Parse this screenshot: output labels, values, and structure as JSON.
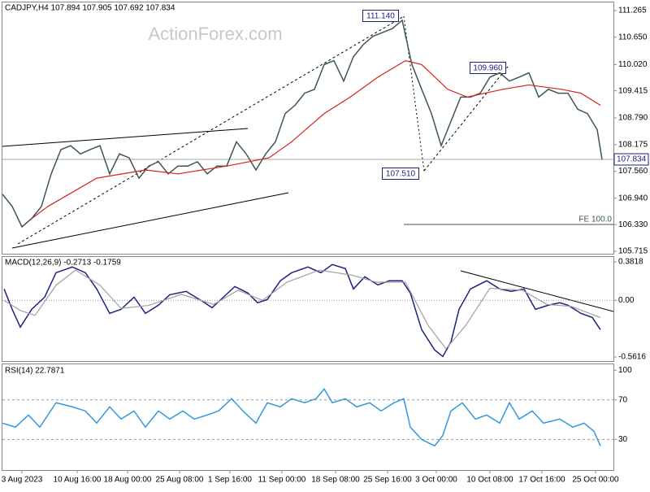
{
  "chart_data": [
    {
      "type": "line",
      "title": "CADJPY,H4  107.894 107.905 107.692 107.834",
      "watermark": "ActionForex.com",
      "xlim": [
        0,
        376
      ],
      "ylim": [
        105.659,
        111.452
      ],
      "yticks": [
        111.265,
        {
          "value": 110.65,
          "label": "110.650"
        },
        {
          "value": 110.02,
          "label": "110.020"
        },
        109.415,
        {
          "value": 108.79,
          "label": "108.790"
        },
        108.175,
        {
          "value": 107.56,
          "label": "107.560"
        },
        {
          "value": 106.94,
          "label": "106.940"
        },
        {
          "value": 106.33,
          "label": "106.330"
        },
        105.715
      ],
      "last_price": {
        "value": 107.834,
        "label": "107.834"
      },
      "annotations": [
        "111.140",
        "109.960",
        "107.510",
        "FE 100.0"
      ],
      "series": [
        {
          "color": "#3d5656",
          "x": [
            0,
            6,
            12,
            18,
            24,
            30,
            36,
            42,
            48,
            54,
            60,
            66,
            72,
            78,
            84,
            90,
            96,
            102,
            108,
            114,
            120,
            126,
            132,
            138,
            144,
            150,
            156,
            162,
            168,
            174,
            180,
            186,
            192,
            198,
            204,
            210,
            216,
            222,
            228,
            234,
            240,
            246,
            252,
            258,
            264,
            270,
            276,
            282,
            288,
            294,
            300,
            306,
            312,
            318,
            324,
            330,
            336,
            342,
            348,
            354,
            360,
            366,
            369
          ],
          "values": [
            107.03,
            106.75,
            106.28,
            106.47,
            106.75,
            107.5,
            108.06,
            108.15,
            107.96,
            108.06,
            108.15,
            107.5,
            107.96,
            107.87,
            107.4,
            107.68,
            107.78,
            107.5,
            107.68,
            107.68,
            107.78,
            107.5,
            107.68,
            107.68,
            108.24,
            107.96,
            107.59,
            107.96,
            108.24,
            108.89,
            109.08,
            109.36,
            109.45,
            110.02,
            110.11,
            109.64,
            110.2,
            110.48,
            110.67,
            110.76,
            110.85,
            111.04,
            110.02,
            109.45,
            108.89,
            108.15,
            108.71,
            109.27,
            109.27,
            109.36,
            109.73,
            109.83,
            109.64,
            109.73,
            109.83,
            109.27,
            109.45,
            109.36,
            109.36,
            108.99,
            108.89,
            108.52,
            107.83
          ]
        },
        {
          "color": "#d62020",
          "x": [
            18,
            28,
            58,
            88,
            108,
            138,
            164,
            178,
            198,
            214,
            231,
            248,
            258,
            274,
            286,
            308,
            324,
            344,
            356,
            368
          ],
          "values": [
            106.47,
            106.75,
            107.4,
            107.59,
            107.5,
            107.68,
            107.87,
            108.24,
            108.89,
            109.27,
            109.73,
            110.11,
            110.02,
            109.45,
            109.27,
            109.45,
            109.55,
            109.45,
            109.36,
            109.08
          ]
        }
      ]
    },
    {
      "type": "line",
      "title": "MACD(12,26,9) -0.2713 -0.1759",
      "xlim": [
        0,
        376
      ],
      "ylim": [
        -0.602,
        0.43
      ],
      "yticks": [
        0.3818,
        {
          "value": 0,
          "label": "0.00"
        },
        -0.5616
      ],
      "zero_line": true,
      "series": [
        {
          "color": "#1a237e",
          "x": [
            1,
            6,
            11,
            18,
            26,
            33,
            43,
            51,
            58,
            66,
            73,
            81,
            88,
            96,
            103,
            113,
            123,
            129,
            136,
            143,
            151,
            157,
            163,
            171,
            178,
            188,
            196,
            203,
            211,
            216,
            223,
            231,
            238,
            246,
            251,
            258,
            266,
            271,
            276,
            281,
            288,
            298,
            306,
            313,
            321,
            328,
            336,
            343,
            348,
            356,
            363,
            368
          ],
          "values": [
            0.113,
            -0.089,
            -0.266,
            -0.089,
            0.032,
            0.274,
            0.331,
            0.274,
            0.113,
            -0.129,
            -0.089,
            0.032,
            -0.129,
            -0.048,
            0.056,
            0.089,
            -0.008,
            -0.073,
            0.032,
            0.137,
            0.073,
            -0.024,
            0.008,
            0.194,
            0.274,
            0.331,
            0.274,
            0.355,
            0.315,
            0.113,
            0.234,
            0.153,
            0.194,
            0.194,
            0.073,
            -0.291,
            -0.492,
            -0.557,
            -0.412,
            -0.089,
            0.113,
            0.194,
            0.113,
            0.089,
            0.113,
            -0.089,
            -0.048,
            -0.024,
            -0.048,
            -0.129,
            -0.17,
            -0.291
          ]
        },
        {
          "color": "#a0a0a0",
          "x": [
            1,
            11,
            20,
            33,
            45,
            60,
            73,
            90,
            110,
            130,
            145,
            160,
            175,
            195,
            215,
            230,
            248,
            262,
            273,
            285,
            300,
            320,
            335,
            350,
            368
          ],
          "values": [
            0.0,
            -0.1,
            -0.15,
            0.15,
            0.3,
            0.15,
            -0.08,
            -0.05,
            0.06,
            -0.04,
            0.1,
            0.0,
            0.18,
            0.3,
            0.25,
            0.18,
            0.18,
            -0.25,
            -0.48,
            -0.25,
            0.12,
            0.1,
            -0.04,
            -0.06,
            -0.17
          ]
        }
      ]
    },
    {
      "type": "line",
      "title": "RSI(14) 22.7871",
      "xlim": [
        0,
        376
      ],
      "ylim": [
        -1,
        106
      ],
      "yticks": [
        100,
        70,
        30
      ],
      "dashed_levels": [
        70,
        30
      ],
      "xticks": [
        {
          "value": 12,
          "label": "3 Aug 2023"
        },
        {
          "value": 46,
          "label": "10 Aug 16:00"
        },
        {
          "value": 77,
          "label": "18 Aug 00:00"
        },
        {
          "value": 109,
          "label": "25 Aug 08:00"
        },
        {
          "value": 140,
          "label": "1 Sep 16:00"
        },
        {
          "value": 172,
          "label": "11 Sep 00:00"
        },
        {
          "value": 205,
          "label": "18 Sep 08:00"
        },
        {
          "value": 237,
          "label": "25 Sep 16:00"
        },
        {
          "value": 267,
          "label": "3 Oct 00:00"
        },
        {
          "value": 300,
          "label": "10 Oct 08:00"
        },
        {
          "value": 332,
          "label": "17 Oct 16:00"
        },
        {
          "value": 365,
          "label": "25 Oct 00:00"
        }
      ],
      "series": [
        {
          "color": "#3399dd",
          "x": [
            0,
            8,
            16,
            23,
            33,
            43,
            51,
            58,
            66,
            73,
            81,
            88,
            96,
            103,
            111,
            118,
            126,
            133,
            141,
            148,
            156,
            163,
            171,
            178,
            186,
            193,
            198,
            203,
            211,
            218,
            226,
            233,
            241,
            247,
            251,
            258,
            266,
            271,
            276,
            283,
            291,
            298,
            306,
            312,
            318,
            326,
            333,
            343,
            351,
            358,
            364,
            368
          ],
          "values": [
            46.5,
            42.4,
            54.7,
            42.4,
            67.1,
            63,
            58.8,
            46.5,
            63,
            50.6,
            58.8,
            42.4,
            58.8,
            50.6,
            58.8,
            50.6,
            54.7,
            58.8,
            71.2,
            58.8,
            46.5,
            67.1,
            63,
            71.2,
            67.1,
            71.2,
            81.1,
            67.1,
            71.2,
            63,
            67.1,
            58.8,
            67.1,
            71.2,
            42.4,
            30,
            23.4,
            34.1,
            58.8,
            67.1,
            50.6,
            54.7,
            46.5,
            67.1,
            50.6,
            58.8,
            46.5,
            50.6,
            42.4,
            46.5,
            38.2,
            23.4
          ]
        }
      ]
    }
  ]
}
